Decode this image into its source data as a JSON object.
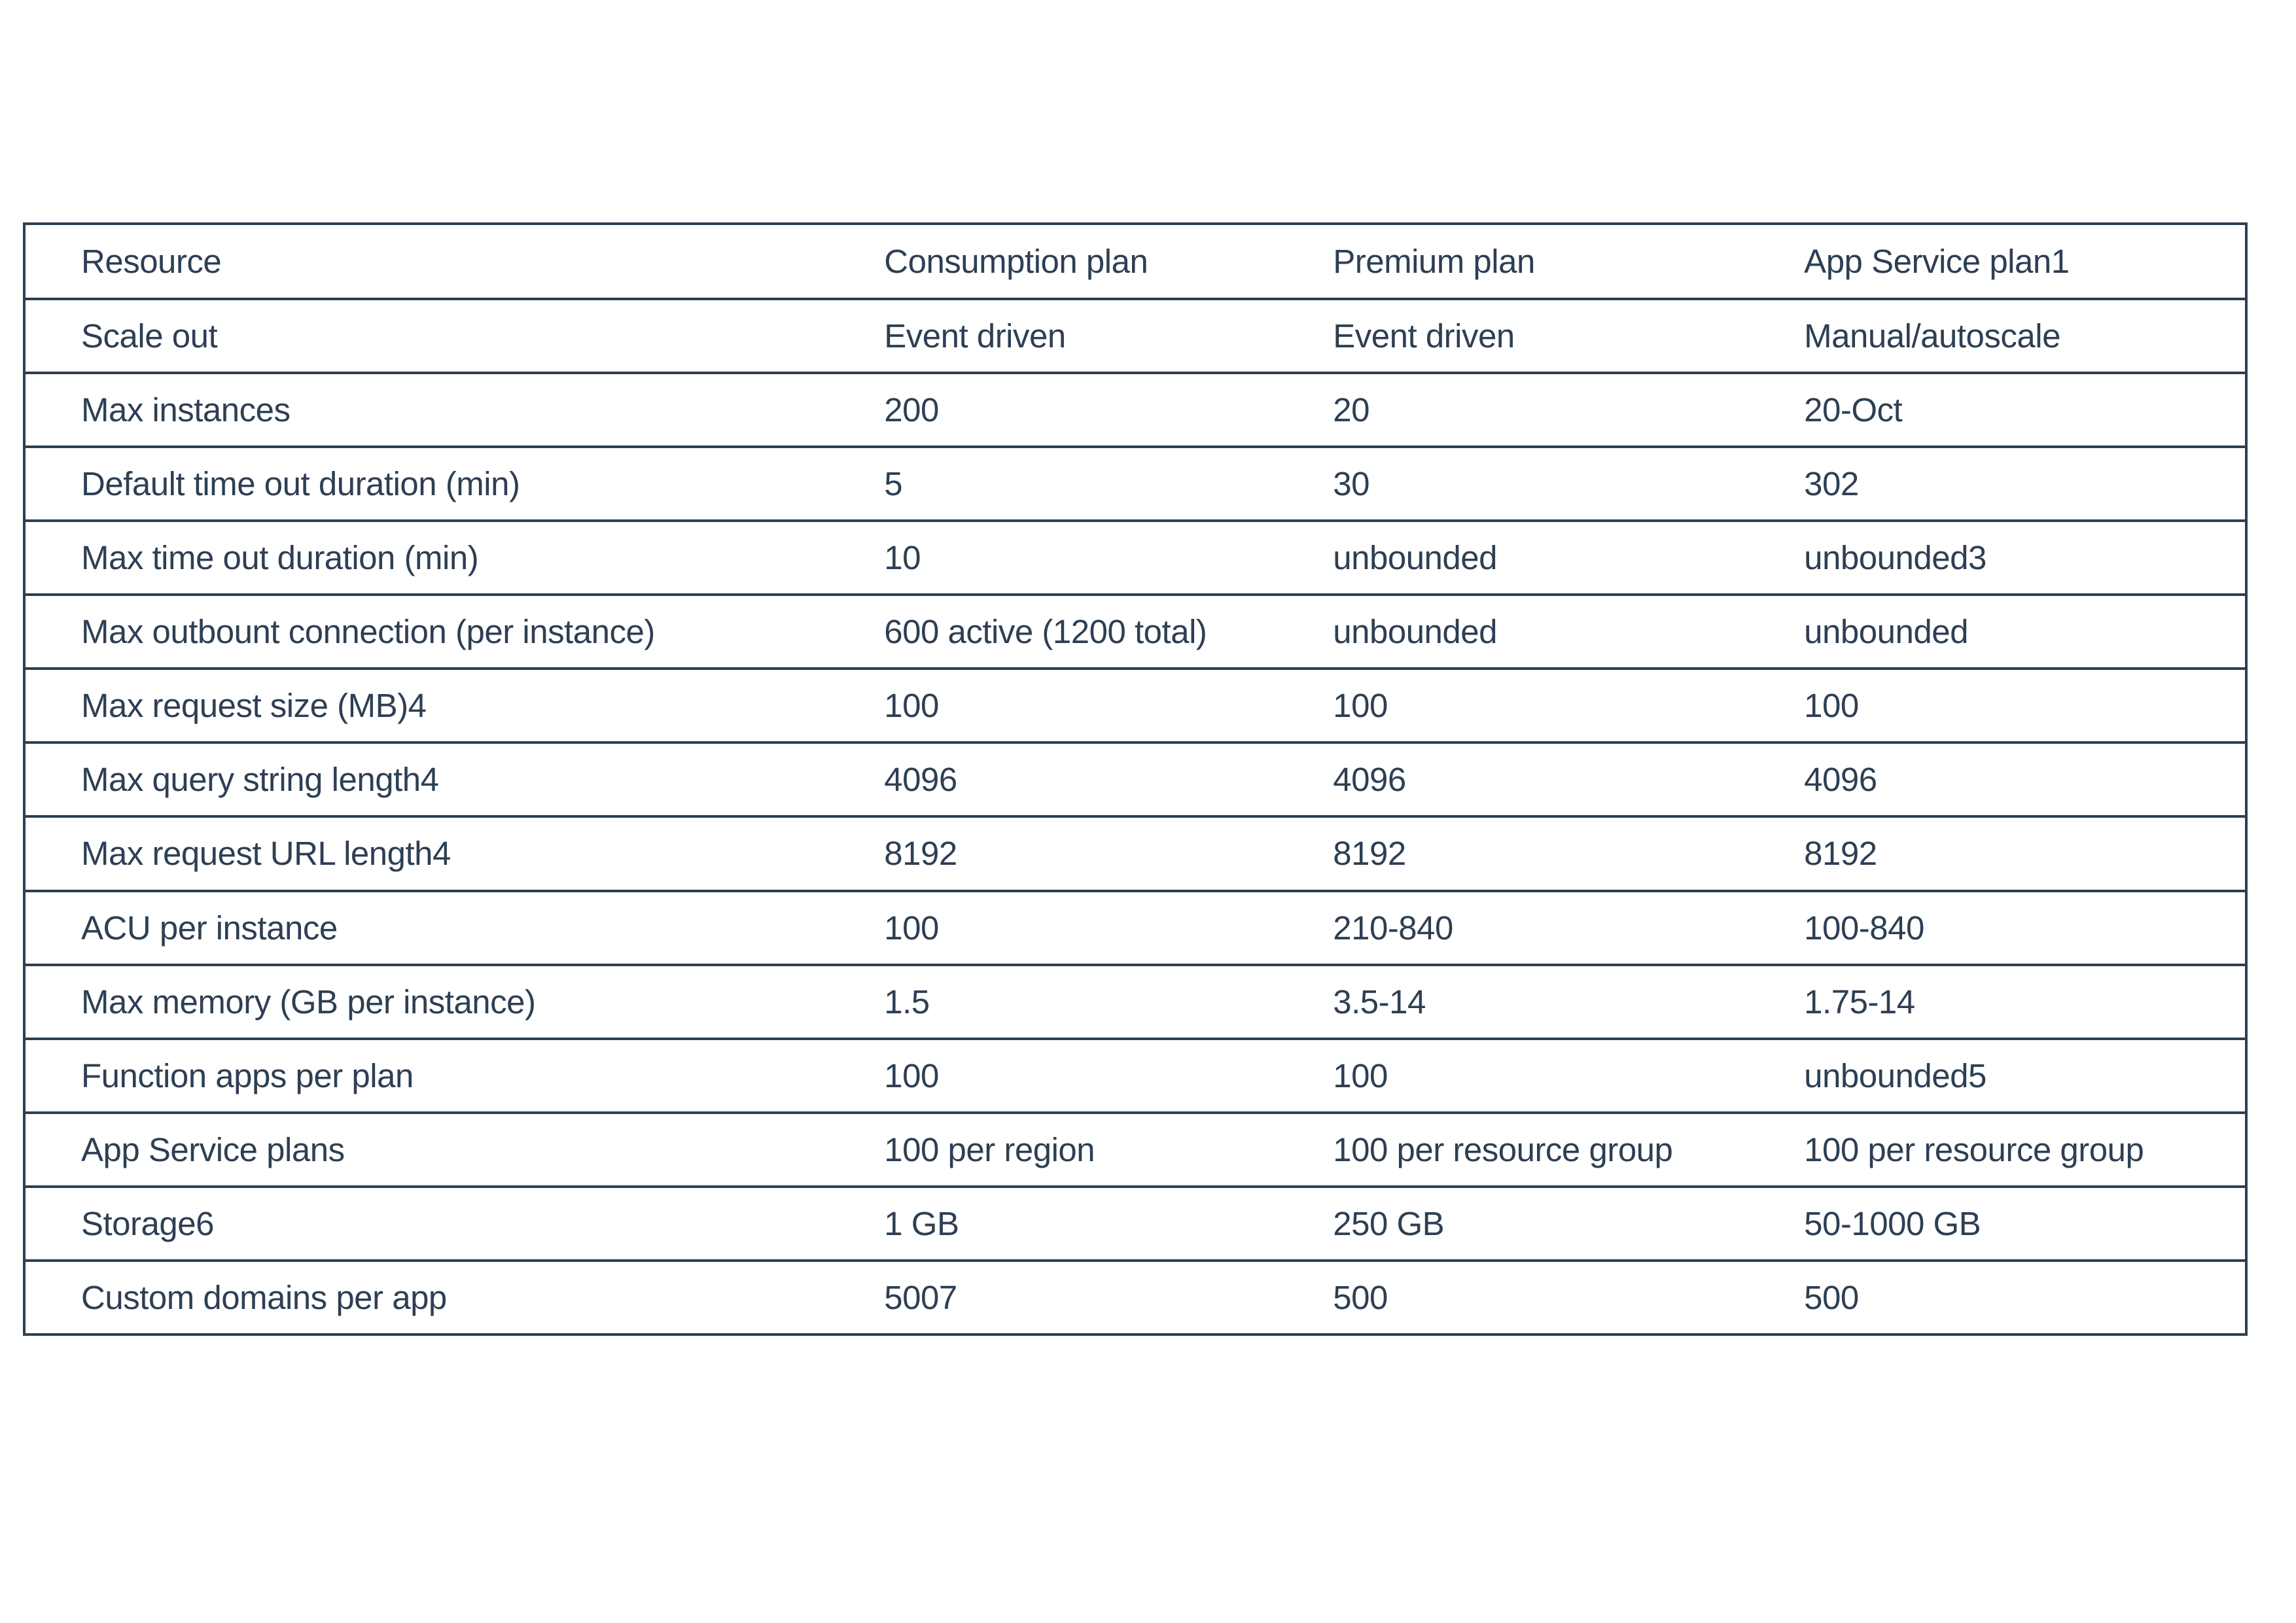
{
  "colors": {
    "text": "#2e3f54",
    "border": "#2e3f54",
    "background": "#ffffff"
  },
  "table": {
    "columns": [
      "Resource",
      "Consumption plan",
      "Premium plan",
      "App Service plan1"
    ],
    "rows": [
      [
        "Scale out",
        "Event driven",
        "Event driven",
        "Manual/autoscale"
      ],
      [
        "Max instances",
        "200",
        "20",
        "20-Oct"
      ],
      [
        "Default time out duration (min)",
        "5",
        "30",
        "302"
      ],
      [
        "Max time out duration (min)",
        "10",
        "unbounded",
        "unbounded3"
      ],
      [
        "Max outbount connection (per instance)",
        "600 active (1200 total)",
        "unbounded",
        "unbounded"
      ],
      [
        "Max request size (MB)4",
        "100",
        "100",
        "100"
      ],
      [
        "Max query string length4",
        "4096",
        "4096",
        "4096"
      ],
      [
        "Max request URL length4",
        "8192",
        "8192",
        "8192"
      ],
      [
        "ACU per instance",
        "100",
        "210-840",
        "100-840"
      ],
      [
        "Max memory (GB per instance)",
        "1.5",
        "3.5-14",
        "1.75-14"
      ],
      [
        "Function apps per plan",
        "100",
        "100",
        "unbounded5"
      ],
      [
        "App Service plans",
        "100 per region",
        "100 per resource group",
        "100 per resource group"
      ],
      [
        "Storage6",
        "1 GB",
        "250 GB",
        "50-1000 GB"
      ],
      [
        "Custom domains per app",
        "5007",
        "500",
        "500"
      ]
    ]
  }
}
